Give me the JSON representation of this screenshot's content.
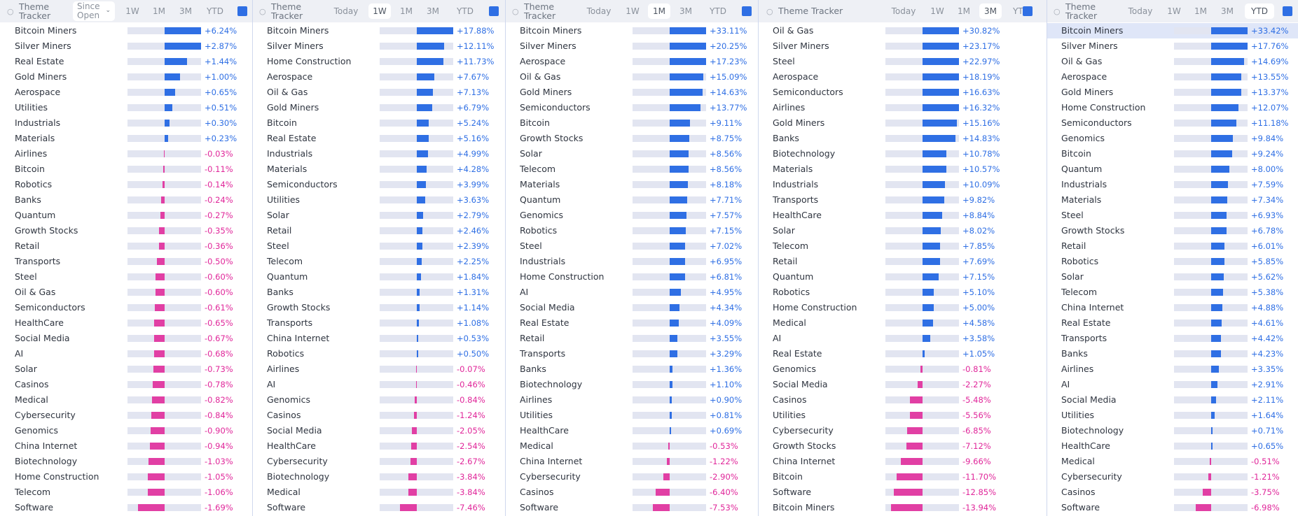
{
  "colors": {
    "positive": "#2f6fe4",
    "negative": "#e13fa4",
    "positive_text": "#2f6fe4",
    "negative_text": "#e0269a",
    "track": "#e2e5f1"
  },
  "panels": [
    {
      "title": "Theme Tracker",
      "title_icon": "theme-tracker-icon",
      "timeframe_dropdown": "Since Open",
      "tabs": [
        "1W",
        "1M",
        "3M",
        "YTD"
      ],
      "active_tab": "",
      "rows": [
        {
          "name": "Bitcoin Miners",
          "value": 6.24,
          "label": "+6.24%"
        },
        {
          "name": "Silver Miners",
          "value": 2.87,
          "label": "+2.87%"
        },
        {
          "name": "Real Estate",
          "value": 1.44,
          "label": "+1.44%"
        },
        {
          "name": "Gold Miners",
          "value": 1.0,
          "label": "+1.00%"
        },
        {
          "name": "Aerospace",
          "value": 0.65,
          "label": "+0.65%"
        },
        {
          "name": "Utilities",
          "value": 0.51,
          "label": "+0.51%"
        },
        {
          "name": "Industrials",
          "value": 0.3,
          "label": "+0.30%"
        },
        {
          "name": "Materials",
          "value": 0.23,
          "label": "+0.23%"
        },
        {
          "name": "Airlines",
          "value": -0.03,
          "label": "-0.03%"
        },
        {
          "name": "Bitcoin",
          "value": -0.11,
          "label": "-0.11%"
        },
        {
          "name": "Robotics",
          "value": -0.14,
          "label": "-0.14%"
        },
        {
          "name": "Banks",
          "value": -0.24,
          "label": "-0.24%"
        },
        {
          "name": "Quantum",
          "value": -0.27,
          "label": "-0.27%"
        },
        {
          "name": "Growth Stocks",
          "value": -0.35,
          "label": "-0.35%"
        },
        {
          "name": "Retail",
          "value": -0.36,
          "label": "-0.36%"
        },
        {
          "name": "Transports",
          "value": -0.5,
          "label": "-0.50%"
        },
        {
          "name": "Steel",
          "value": -0.6,
          "label": "-0.60%"
        },
        {
          "name": "Oil & Gas",
          "value": -0.6,
          "label": "-0.60%"
        },
        {
          "name": "Semiconductors",
          "value": -0.61,
          "label": "-0.61%"
        },
        {
          "name": "HealthCare",
          "value": -0.65,
          "label": "-0.65%"
        },
        {
          "name": "Social Media",
          "value": -0.67,
          "label": "-0.67%"
        },
        {
          "name": "AI",
          "value": -0.68,
          "label": "-0.68%"
        },
        {
          "name": "Solar",
          "value": -0.73,
          "label": "-0.73%"
        },
        {
          "name": "Casinos",
          "value": -0.78,
          "label": "-0.78%"
        },
        {
          "name": "Medical",
          "value": -0.82,
          "label": "-0.82%"
        },
        {
          "name": "Cybersecurity",
          "value": -0.84,
          "label": "-0.84%"
        },
        {
          "name": "Genomics",
          "value": -0.9,
          "label": "-0.90%"
        },
        {
          "name": "China Internet",
          "value": -0.94,
          "label": "-0.94%"
        },
        {
          "name": "Biotechnology",
          "value": -1.03,
          "label": "-1.03%"
        },
        {
          "name": "Home Construction",
          "value": -1.05,
          "label": "-1.05%"
        },
        {
          "name": "Telecom",
          "value": -1.06,
          "label": "-1.06%"
        },
        {
          "name": "Software",
          "value": -1.69,
          "label": "-1.69%"
        }
      ]
    },
    {
      "title": "Theme Tracker",
      "title_icon": "theme-tracker-icon",
      "tabs": [
        "Today",
        "1W",
        "1M",
        "3M",
        "YTD"
      ],
      "active_tab": "1W",
      "rows": [
        {
          "name": "Bitcoin Miners",
          "value": 17.88,
          "label": "+17.88%"
        },
        {
          "name": "Silver Miners",
          "value": 12.11,
          "label": "+12.11%"
        },
        {
          "name": "Home Construction",
          "value": 11.73,
          "label": "+11.73%"
        },
        {
          "name": "Aerospace",
          "value": 7.67,
          "label": "+7.67%"
        },
        {
          "name": "Oil & Gas",
          "value": 7.13,
          "label": "+7.13%"
        },
        {
          "name": "Gold Miners",
          "value": 6.79,
          "label": "+6.79%"
        },
        {
          "name": "Bitcoin",
          "value": 5.24,
          "label": "+5.24%"
        },
        {
          "name": "Real Estate",
          "value": 5.16,
          "label": "+5.16%"
        },
        {
          "name": "Industrials",
          "value": 4.99,
          "label": "+4.99%"
        },
        {
          "name": "Materials",
          "value": 4.28,
          "label": "+4.28%"
        },
        {
          "name": "Semiconductors",
          "value": 3.99,
          "label": "+3.99%"
        },
        {
          "name": "Utilities",
          "value": 3.63,
          "label": "+3.63%"
        },
        {
          "name": "Solar",
          "value": 2.79,
          "label": "+2.79%"
        },
        {
          "name": "Retail",
          "value": 2.46,
          "label": "+2.46%"
        },
        {
          "name": "Steel",
          "value": 2.39,
          "label": "+2.39%"
        },
        {
          "name": "Telecom",
          "value": 2.25,
          "label": "+2.25%"
        },
        {
          "name": "Quantum",
          "value": 1.84,
          "label": "+1.84%"
        },
        {
          "name": "Banks",
          "value": 1.31,
          "label": "+1.31%"
        },
        {
          "name": "Growth Stocks",
          "value": 1.14,
          "label": "+1.14%"
        },
        {
          "name": "Transports",
          "value": 1.08,
          "label": "+1.08%"
        },
        {
          "name": "China Internet",
          "value": 0.53,
          "label": "+0.53%"
        },
        {
          "name": "Robotics",
          "value": 0.5,
          "label": "+0.50%"
        },
        {
          "name": "Airlines",
          "value": -0.07,
          "label": "-0.07%"
        },
        {
          "name": "AI",
          "value": -0.46,
          "label": "-0.46%"
        },
        {
          "name": "Genomics",
          "value": -0.84,
          "label": "-0.84%"
        },
        {
          "name": "Casinos",
          "value": -1.24,
          "label": "-1.24%"
        },
        {
          "name": "Social Media",
          "value": -2.05,
          "label": "-2.05%"
        },
        {
          "name": "HealthCare",
          "value": -2.54,
          "label": "-2.54%"
        },
        {
          "name": "Cybersecurity",
          "value": -2.67,
          "label": "-2.67%"
        },
        {
          "name": "Biotechnology",
          "value": -3.84,
          "label": "-3.84%"
        },
        {
          "name": "Medical",
          "value": -3.84,
          "label": "-3.84%"
        },
        {
          "name": "Software",
          "value": -7.46,
          "label": "-7.46%"
        }
      ]
    },
    {
      "title": "Theme Tracker",
      "title_icon": "theme-tracker-icon",
      "tabs": [
        "Today",
        "1W",
        "1M",
        "3M",
        "YTD"
      ],
      "active_tab": "1M",
      "rows": [
        {
          "name": "Bitcoin Miners",
          "value": 33.11,
          "label": "+33.11%"
        },
        {
          "name": "Silver Miners",
          "value": 20.25,
          "label": "+20.25%"
        },
        {
          "name": "Aerospace",
          "value": 17.23,
          "label": "+17.23%"
        },
        {
          "name": "Oil & Gas",
          "value": 15.09,
          "label": "+15.09%"
        },
        {
          "name": "Gold Miners",
          "value": 14.63,
          "label": "+14.63%"
        },
        {
          "name": "Semiconductors",
          "value": 13.77,
          "label": "+13.77%"
        },
        {
          "name": "Bitcoin",
          "value": 9.11,
          "label": "+9.11%"
        },
        {
          "name": "Growth Stocks",
          "value": 8.75,
          "label": "+8.75%"
        },
        {
          "name": "Solar",
          "value": 8.56,
          "label": "+8.56%"
        },
        {
          "name": "Telecom",
          "value": 8.56,
          "label": "+8.56%"
        },
        {
          "name": "Materials",
          "value": 8.18,
          "label": "+8.18%"
        },
        {
          "name": "Quantum",
          "value": 7.71,
          "label": "+7.71%"
        },
        {
          "name": "Genomics",
          "value": 7.57,
          "label": "+7.57%"
        },
        {
          "name": "Robotics",
          "value": 7.15,
          "label": "+7.15%"
        },
        {
          "name": "Steel",
          "value": 7.02,
          "label": "+7.02%"
        },
        {
          "name": "Industrials",
          "value": 6.95,
          "label": "+6.95%"
        },
        {
          "name": "Home Construction",
          "value": 6.81,
          "label": "+6.81%"
        },
        {
          "name": "AI",
          "value": 4.95,
          "label": "+4.95%"
        },
        {
          "name": "Social Media",
          "value": 4.34,
          "label": "+4.34%"
        },
        {
          "name": "Real Estate",
          "value": 4.09,
          "label": "+4.09%"
        },
        {
          "name": "Retail",
          "value": 3.55,
          "label": "+3.55%"
        },
        {
          "name": "Transports",
          "value": 3.29,
          "label": "+3.29%"
        },
        {
          "name": "Banks",
          "value": 1.36,
          "label": "+1.36%"
        },
        {
          "name": "Biotechnology",
          "value": 1.1,
          "label": "+1.10%"
        },
        {
          "name": "Airlines",
          "value": 0.9,
          "label": "+0.90%"
        },
        {
          "name": "Utilities",
          "value": 0.81,
          "label": "+0.81%"
        },
        {
          "name": "HealthCare",
          "value": 0.69,
          "label": "+0.69%"
        },
        {
          "name": "Medical",
          "value": -0.53,
          "label": "-0.53%"
        },
        {
          "name": "China Internet",
          "value": -1.22,
          "label": "-1.22%"
        },
        {
          "name": "Cybersecurity",
          "value": -2.9,
          "label": "-2.90%"
        },
        {
          "name": "Casinos",
          "value": -6.4,
          "label": "-6.40%"
        },
        {
          "name": "Software",
          "value": -7.53,
          "label": "-7.53%"
        }
      ]
    },
    {
      "title": "Theme Tracker",
      "title_icon": "theme-tracker-icon",
      "tabs": [
        "Today",
        "1W",
        "1M",
        "3M",
        "YTD"
      ],
      "active_tab": "3M",
      "rows": [
        {
          "name": "Oil & Gas",
          "value": 30.82,
          "label": "+30.82%"
        },
        {
          "name": "Silver Miners",
          "value": 23.17,
          "label": "+23.17%"
        },
        {
          "name": "Steel",
          "value": 22.97,
          "label": "+22.97%"
        },
        {
          "name": "Aerospace",
          "value": 18.19,
          "label": "+18.19%"
        },
        {
          "name": "Semiconductors",
          "value": 16.63,
          "label": "+16.63%"
        },
        {
          "name": "Airlines",
          "value": 16.32,
          "label": "+16.32%"
        },
        {
          "name": "Gold Miners",
          "value": 15.16,
          "label": "+15.16%"
        },
        {
          "name": "Banks",
          "value": 14.83,
          "label": "+14.83%"
        },
        {
          "name": "Biotechnology",
          "value": 10.78,
          "label": "+10.78%"
        },
        {
          "name": "Materials",
          "value": 10.57,
          "label": "+10.57%"
        },
        {
          "name": "Industrials",
          "value": 10.09,
          "label": "+10.09%"
        },
        {
          "name": "Transports",
          "value": 9.82,
          "label": "+9.82%"
        },
        {
          "name": "HealthCare",
          "value": 8.84,
          "label": "+8.84%"
        },
        {
          "name": "Solar",
          "value": 8.02,
          "label": "+8.02%"
        },
        {
          "name": "Telecom",
          "value": 7.85,
          "label": "+7.85%"
        },
        {
          "name": "Retail",
          "value": 7.69,
          "label": "+7.69%"
        },
        {
          "name": "Quantum",
          "value": 7.15,
          "label": "+7.15%"
        },
        {
          "name": "Robotics",
          "value": 5.1,
          "label": "+5.10%"
        },
        {
          "name": "Home Construction",
          "value": 5.0,
          "label": "+5.00%"
        },
        {
          "name": "Medical",
          "value": 4.58,
          "label": "+4.58%"
        },
        {
          "name": "AI",
          "value": 3.58,
          "label": "+3.58%"
        },
        {
          "name": "Real Estate",
          "value": 1.05,
          "label": "+1.05%"
        },
        {
          "name": "Genomics",
          "value": -0.81,
          "label": "-0.81%"
        },
        {
          "name": "Social Media",
          "value": -2.27,
          "label": "-2.27%"
        },
        {
          "name": "Casinos",
          "value": -5.48,
          "label": "-5.48%"
        },
        {
          "name": "Utilities",
          "value": -5.56,
          "label": "-5.56%"
        },
        {
          "name": "Cybersecurity",
          "value": -6.85,
          "label": "-6.85%"
        },
        {
          "name": "Growth Stocks",
          "value": -7.12,
          "label": "-7.12%"
        },
        {
          "name": "China Internet",
          "value": -9.66,
          "label": "-9.66%"
        },
        {
          "name": "Bitcoin",
          "value": -11.7,
          "label": "-11.70%"
        },
        {
          "name": "Software",
          "value": -12.85,
          "label": "-12.85%"
        },
        {
          "name": "Bitcoin Miners",
          "value": -13.94,
          "label": "-13.94%"
        }
      ]
    },
    {
      "title": "Theme Tracker",
      "title_icon": "theme-tracker-icon",
      "tabs": [
        "Today",
        "1W",
        "1M",
        "3M",
        "YTD"
      ],
      "active_tab": "YTD",
      "highlighted_row": "Bitcoin Miners",
      "rows": [
        {
          "name": "Bitcoin Miners",
          "value": 33.42,
          "label": "+33.42%"
        },
        {
          "name": "Silver Miners",
          "value": 17.76,
          "label": "+17.76%"
        },
        {
          "name": "Oil & Gas",
          "value": 14.69,
          "label": "+14.69%"
        },
        {
          "name": "Aerospace",
          "value": 13.55,
          "label": "+13.55%"
        },
        {
          "name": "Gold Miners",
          "value": 13.37,
          "label": "+13.37%"
        },
        {
          "name": "Home Construction",
          "value": 12.07,
          "label": "+12.07%"
        },
        {
          "name": "Semiconductors",
          "value": 11.18,
          "label": "+11.18%"
        },
        {
          "name": "Genomics",
          "value": 9.84,
          "label": "+9.84%"
        },
        {
          "name": "Bitcoin",
          "value": 9.24,
          "label": "+9.24%"
        },
        {
          "name": "Quantum",
          "value": 8.0,
          "label": "+8.00%"
        },
        {
          "name": "Industrials",
          "value": 7.59,
          "label": "+7.59%"
        },
        {
          "name": "Materials",
          "value": 7.34,
          "label": "+7.34%"
        },
        {
          "name": "Steel",
          "value": 6.93,
          "label": "+6.93%"
        },
        {
          "name": "Growth Stocks",
          "value": 6.78,
          "label": "+6.78%"
        },
        {
          "name": "Retail",
          "value": 6.01,
          "label": "+6.01%"
        },
        {
          "name": "Robotics",
          "value": 5.85,
          "label": "+5.85%"
        },
        {
          "name": "Solar",
          "value": 5.62,
          "label": "+5.62%"
        },
        {
          "name": "Telecom",
          "value": 5.38,
          "label": "+5.38%"
        },
        {
          "name": "China Internet",
          "value": 4.88,
          "label": "+4.88%"
        },
        {
          "name": "Real Estate",
          "value": 4.61,
          "label": "+4.61%"
        },
        {
          "name": "Transports",
          "value": 4.42,
          "label": "+4.42%"
        },
        {
          "name": "Banks",
          "value": 4.23,
          "label": "+4.23%"
        },
        {
          "name": "Airlines",
          "value": 3.35,
          "label": "+3.35%"
        },
        {
          "name": "AI",
          "value": 2.91,
          "label": "+2.91%"
        },
        {
          "name": "Social Media",
          "value": 2.11,
          "label": "+2.11%"
        },
        {
          "name": "Utilities",
          "value": 1.64,
          "label": "+1.64%"
        },
        {
          "name": "Biotechnology",
          "value": 0.71,
          "label": "+0.71%"
        },
        {
          "name": "HealthCare",
          "value": 0.65,
          "label": "+0.65%"
        },
        {
          "name": "Medical",
          "value": -0.51,
          "label": "-0.51%"
        },
        {
          "name": "Cybersecurity",
          "value": -1.21,
          "label": "-1.21%"
        },
        {
          "name": "Casinos",
          "value": -3.75,
          "label": "-3.75%"
        },
        {
          "name": "Software",
          "value": -6.98,
          "label": "-6.98%"
        }
      ]
    }
  ]
}
